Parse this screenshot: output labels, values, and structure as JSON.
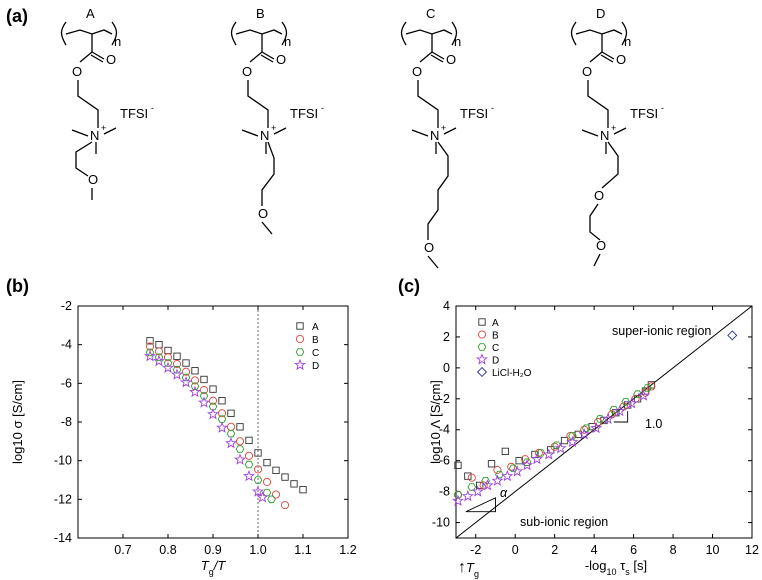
{
  "figure": {
    "panel_a_label": "(a)",
    "panel_b_label": "(b)",
    "panel_c_label": "(c)"
  },
  "structures": [
    {
      "label": "A",
      "subscript": "n",
      "carbonyl_o": "O",
      "ester_o": "O",
      "charge": "+",
      "n_atom": "N",
      "anion": "TFSI",
      "anion_charge": "-",
      "ether_o": [
        "O"
      ]
    },
    {
      "label": "B",
      "subscript": "n",
      "carbonyl_o": "O",
      "ester_o": "O",
      "charge": "+",
      "n_atom": "N",
      "anion": "TFSI",
      "anion_charge": "-",
      "ether_o": [
        "O"
      ]
    },
    {
      "label": "C",
      "subscript": "n",
      "carbonyl_o": "O",
      "ester_o": "O",
      "charge": "+",
      "n_atom": "N",
      "anion": "TFSI",
      "anion_charge": "-",
      "ether_o": [
        "O"
      ]
    },
    {
      "label": "D",
      "subscript": "n",
      "carbonyl_o": "O",
      "ester_o": "O",
      "charge": "+",
      "n_atom": "N",
      "anion": "TFSI",
      "anion_charge": "-",
      "ether_o": [
        "O",
        "O"
      ]
    }
  ],
  "colors": {
    "A": "#333333",
    "B": "#e0443a",
    "C": "#2e9e2e",
    "D": "#a040e0",
    "LiCl": "#2a2a9a",
    "axis": "#000000",
    "dotted": "#555555"
  },
  "chart_data": [
    {
      "type": "scatter",
      "panel": "b",
      "title": "",
      "xlabel": "Tg/T",
      "xlabel_main": "T",
      "xlabel_sub": "g",
      "xlabel_tail": "/T",
      "ylabel": "log10 σ [S/cm]",
      "xlim": [
        0.6,
        1.2
      ],
      "ylim": [
        -14,
        -2
      ],
      "xticks": [
        0.7,
        0.8,
        0.9,
        1.0,
        1.1,
        1.2
      ],
      "xtick_labels": [
        "0.7",
        "0.8",
        "0.9",
        "1.0",
        "1.1",
        "1.2"
      ],
      "yticks": [
        -2,
        -4,
        -6,
        -8,
        -10,
        -12,
        -14
      ],
      "ytick_labels": [
        "-2",
        "-4",
        "-6",
        "-8",
        "-10",
        "-12",
        "-14"
      ],
      "vline_x": 1.0,
      "legend_position": "top-right",
      "series": [
        {
          "name": "A",
          "marker": "square",
          "x": [
            0.76,
            0.78,
            0.8,
            0.82,
            0.84,
            0.86,
            0.88,
            0.9,
            0.92,
            0.94,
            0.96,
            0.98,
            1.0,
            1.02,
            1.04,
            1.06,
            1.08,
            1.1
          ],
          "y": [
            -3.8,
            -4.0,
            -4.3,
            -4.6,
            -4.95,
            -5.35,
            -5.8,
            -6.3,
            -6.9,
            -7.55,
            -8.25,
            -8.95,
            -9.6,
            -10.1,
            -10.5,
            -10.85,
            -11.2,
            -11.5
          ]
        },
        {
          "name": "B",
          "marker": "circle",
          "x": [
            0.76,
            0.78,
            0.8,
            0.82,
            0.84,
            0.86,
            0.88,
            0.9,
            0.92,
            0.94,
            0.96,
            0.98,
            1.0,
            1.02,
            1.04,
            1.06
          ],
          "y": [
            -4.1,
            -4.35,
            -4.65,
            -5.0,
            -5.4,
            -5.85,
            -6.35,
            -6.9,
            -7.55,
            -8.25,
            -9.0,
            -9.75,
            -10.45,
            -11.1,
            -11.75,
            -12.3
          ]
        },
        {
          "name": "C",
          "marker": "hexagon",
          "x": [
            0.76,
            0.78,
            0.8,
            0.82,
            0.84,
            0.86,
            0.88,
            0.9,
            0.92,
            0.94,
            0.96,
            0.98,
            1.0,
            1.02,
            1.03
          ],
          "y": [
            -4.4,
            -4.65,
            -4.95,
            -5.3,
            -5.7,
            -6.15,
            -6.65,
            -7.2,
            -7.85,
            -8.6,
            -9.4,
            -10.2,
            -11.0,
            -11.65,
            -12.0
          ]
        },
        {
          "name": "D",
          "marker": "star",
          "x": [
            0.76,
            0.78,
            0.8,
            0.82,
            0.84,
            0.86,
            0.88,
            0.9,
            0.92,
            0.94,
            0.96,
            0.98,
            1.0,
            1.01
          ],
          "y": [
            -4.6,
            -4.85,
            -5.2,
            -5.55,
            -5.95,
            -6.45,
            -7.0,
            -7.6,
            -8.3,
            -9.1,
            -9.95,
            -10.8,
            -11.6,
            -11.9
          ]
        }
      ]
    },
    {
      "type": "scatter",
      "panel": "c",
      "title": "",
      "xlabel": "-log10 τs [s]",
      "xlabel_main": "-log",
      "xlabel_sub10": "10",
      "xlabel_tau": " τ",
      "xlabel_sub_s": "s",
      "xlabel_tail": " [s]",
      "ylabel": "log10 Λ [S/cm]",
      "xlim": [
        -3,
        12
      ],
      "ylim": [
        -11,
        4
      ],
      "xticks": [
        -2,
        0,
        2,
        4,
        6,
        8,
        10,
        12
      ],
      "xtick_labels": [
        "-2",
        "0",
        "2",
        "4",
        "6",
        "8",
        "10",
        "12"
      ],
      "yticks": [
        4,
        2,
        0,
        -2,
        -4,
        -6,
        -8,
        -10
      ],
      "ytick_labels": [
        "4",
        "2",
        "0",
        "-2",
        "-4",
        "-6",
        "-8",
        "-10"
      ],
      "diagonal": {
        "x": [
          -3,
          12
        ],
        "y": [
          -11,
          4
        ]
      },
      "annotations": {
        "super": "super-ionic region",
        "sub": "sub-ionic region",
        "slope": "1.0",
        "alpha": "α",
        "tg_main": "T",
        "tg_sub": "g",
        "tg_arrow": "↑"
      },
      "legend_position": "top-left",
      "series": [
        {
          "name": "A",
          "marker": "square",
          "x": [
            -2.9,
            -2.4,
            -1.8,
            -1.2,
            -0.5,
            0.2,
            1.0,
            1.8,
            2.5,
            3.2,
            3.9,
            4.5,
            5.1,
            5.7,
            6.2,
            6.6,
            6.9
          ],
          "y": [
            -6.3,
            -7.0,
            -7.6,
            -6.2,
            -5.4,
            -6.0,
            -5.6,
            -5.3,
            -4.7,
            -4.3,
            -3.8,
            -3.4,
            -2.9,
            -2.4,
            -2.0,
            -1.5,
            -1.1
          ]
        },
        {
          "name": "B",
          "marker": "circle",
          "x": [
            -2.9,
            -2.2,
            -1.6,
            -0.9,
            -0.2,
            0.5,
            1.2,
            2.0,
            2.8,
            3.5,
            4.2,
            4.9,
            5.5,
            6.1,
            6.6,
            6.9
          ],
          "y": [
            -8.2,
            -7.1,
            -7.6,
            -6.6,
            -6.4,
            -5.9,
            -5.5,
            -5.1,
            -4.4,
            -4.0,
            -3.5,
            -3.0,
            -2.5,
            -2.0,
            -1.6,
            -1.2
          ]
        },
        {
          "name": "C",
          "marker": "hexagon",
          "x": [
            -2.9,
            -2.2,
            -1.5,
            -0.8,
            -0.1,
            0.6,
            1.3,
            2.1,
            2.9,
            3.6,
            4.3,
            5.0,
            5.6,
            6.2,
            6.7
          ],
          "y": [
            -8.2,
            -7.7,
            -7.3,
            -6.9,
            -6.5,
            -6.1,
            -5.5,
            -5.0,
            -4.4,
            -3.9,
            -3.3,
            -2.7,
            -2.2,
            -1.7,
            -1.3
          ]
        },
        {
          "name": "D",
          "marker": "star",
          "x": [
            -2.9,
            -2.4,
            -1.9,
            -1.4,
            -0.9,
            -0.4,
            0.1,
            0.6,
            1.1,
            1.7,
            2.3,
            2.9,
            3.5,
            4.1,
            4.7,
            5.3,
            5.9,
            6.5
          ],
          "y": [
            -8.6,
            -8.3,
            -8.0,
            -7.6,
            -7.3,
            -7.0,
            -6.7,
            -6.3,
            -5.9,
            -5.6,
            -5.2,
            -4.8,
            -4.3,
            -3.9,
            -3.3,
            -2.8,
            -2.3,
            -1.8
          ]
        },
        {
          "name": "LiCl-H2O",
          "label": "LiCl-H₂O",
          "marker": "diamond",
          "x": [
            11.0
          ],
          "y": [
            2.1
          ]
        }
      ]
    }
  ]
}
